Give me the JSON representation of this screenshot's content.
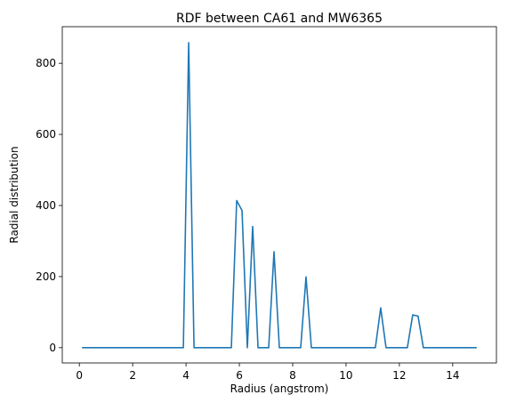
{
  "chart_data": {
    "type": "line",
    "title": "RDF between CA61 and MW6365",
    "xlabel": "Radius (angstrom)",
    "ylabel": "Radial distribution",
    "xlim": [
      -0.64,
      15.64
    ],
    "ylim": [
      -43,
      903
    ],
    "xticks": [
      0,
      2,
      4,
      6,
      8,
      10,
      12,
      14
    ],
    "yticks": [
      0,
      200,
      400,
      600,
      800
    ],
    "grid": false,
    "legend": "none",
    "series": [
      {
        "color": "#1f77b4",
        "x": [
          0.1,
          0.3,
          0.5,
          0.7,
          0.9,
          1.1,
          1.3,
          1.5,
          1.7,
          1.9,
          2.1,
          2.3,
          2.5,
          2.7,
          2.9,
          3.1,
          3.3,
          3.5,
          3.7,
          3.9,
          4.1,
          4.3,
          4.5,
          4.7,
          4.9,
          5.1,
          5.3,
          5.5,
          5.7,
          5.9,
          6.1,
          6.3,
          6.5,
          6.7,
          6.9,
          7.1,
          7.3,
          7.5,
          7.7,
          7.9,
          8.1,
          8.3,
          8.5,
          8.7,
          8.9,
          9.1,
          9.3,
          9.5,
          9.7,
          9.9,
          10.1,
          10.3,
          10.5,
          10.7,
          10.9,
          11.1,
          11.3,
          11.5,
          11.7,
          11.9,
          12.1,
          12.3,
          12.5,
          12.7,
          12.9,
          13.1,
          13.3,
          13.5,
          13.7,
          13.9,
          14.1,
          14.3,
          14.5,
          14.7,
          14.9
        ],
        "y": [
          0,
          0,
          0,
          0,
          0,
          0,
          0,
          0,
          0,
          0,
          0,
          0,
          0,
          0,
          0,
          0,
          0,
          0,
          0,
          0,
          858,
          0,
          0,
          0,
          0,
          0,
          0,
          0,
          0,
          414,
          386,
          0,
          341,
          0,
          0,
          0,
          270,
          0,
          0,
          0,
          0,
          0,
          199,
          0,
          0,
          0,
          0,
          0,
          0,
          0,
          0,
          0,
          0,
          0,
          0,
          0,
          112,
          0,
          0,
          0,
          0,
          0,
          92,
          89,
          0,
          0,
          0,
          0,
          0,
          0,
          0,
          0,
          0,
          0,
          0
        ]
      }
    ]
  }
}
